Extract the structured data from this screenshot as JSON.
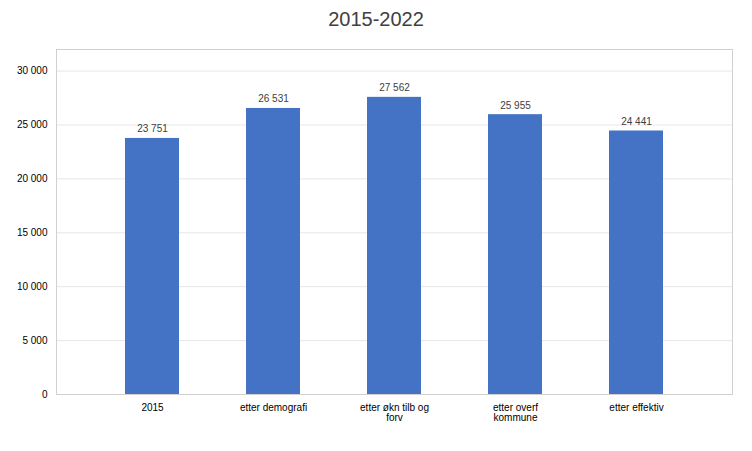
{
  "chart_data": {
    "type": "bar",
    "title": "2015-2022",
    "categories": [
      "2015",
      "etter demografi",
      "etter økn tilb og\nforv",
      "etter overf\nkommune",
      "etter effektiv"
    ],
    "values": [
      23751,
      26531,
      27562,
      25955,
      24441
    ],
    "value_labels": [
      "23 751",
      "26 531",
      "27 562",
      "25 955",
      "24 441"
    ],
    "data_labels": true,
    "color": "#4472C4",
    "ylim": [
      0,
      32000
    ],
    "yticks": [
      0,
      {
        "value": 5000,
        "label": "5 000"
      },
      {
        "value": 10000,
        "label": "10 000"
      },
      {
        "value": 15000,
        "label": "15 000"
      },
      {
        "value": 20000,
        "label": "20 000"
      },
      {
        "value": 25000,
        "label": "25 000"
      },
      {
        "value": 30000,
        "label": "30 000"
      }
    ],
    "grid": true
  }
}
